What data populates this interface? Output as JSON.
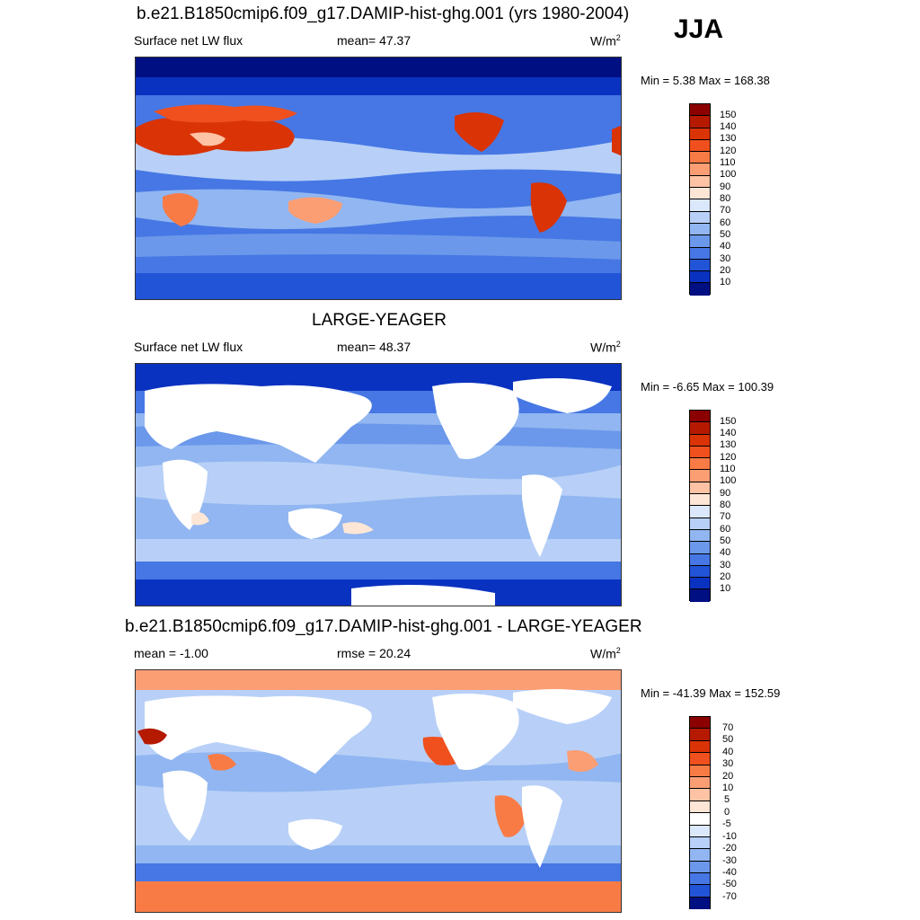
{
  "season": "JJA",
  "panels": [
    {
      "title": "b.e21.B1850cmip6.f09_g17.DAMIP-hist-ghg.001 (yrs 1980-2004)",
      "left_label": "Surface net LW flux",
      "stat_label": "mean=  47.37",
      "units": "W/m",
      "units_sup": "2",
      "minmax": "Min =   5.38 Max = 168.38",
      "colorbar": {
        "labels": [
          "150",
          "140",
          "130",
          "120",
          "110",
          "100",
          "90",
          "80",
          "70",
          "60",
          "50",
          "40",
          "30",
          "20",
          "10"
        ],
        "colors": [
          "#8b0000",
          "#b51a00",
          "#d93306",
          "#f0501e",
          "#f87b46",
          "#fb9e74",
          "#fdc3a4",
          "#fde6d6",
          "#dbe8fb",
          "#b8d0f7",
          "#91b6f1",
          "#6b98ea",
          "#4677e4",
          "#2254d8",
          "#0a32c0",
          "#000f82"
        ]
      }
    },
    {
      "title": "LARGE-YEAGER",
      "left_label": "Surface net LW flux",
      "stat_label": "mean=  48.37",
      "units": "W/m",
      "units_sup": "2",
      "minmax": "Min =  -6.65 Max = 100.39",
      "colorbar": {
        "labels": [
          "150",
          "140",
          "130",
          "120",
          "110",
          "100",
          "90",
          "80",
          "70",
          "60",
          "50",
          "40",
          "30",
          "20",
          "10"
        ],
        "colors": [
          "#8b0000",
          "#b51a00",
          "#d93306",
          "#f0501e",
          "#f87b46",
          "#fb9e74",
          "#fdc3a4",
          "#fde6d6",
          "#dbe8fb",
          "#b8d0f7",
          "#91b6f1",
          "#6b98ea",
          "#4677e4",
          "#2254d8",
          "#0a32c0",
          "#000f82"
        ]
      }
    },
    {
      "title": "b.e21.B1850cmip6.f09_g17.DAMIP-hist-ghg.001 - LARGE-YEAGER",
      "left_label": "mean =  -1.00",
      "stat_label": "rmse =  20.24",
      "units": "W/m",
      "units_sup": "2",
      "minmax": "Min = -41.39 Max = 152.59",
      "colorbar": {
        "labels": [
          "70",
          "50",
          "40",
          "30",
          "20",
          "10",
          "5",
          "0",
          "-5",
          "-10",
          "-20",
          "-30",
          "-40",
          "-50",
          "-70"
        ],
        "colors": [
          "#8b0000",
          "#b51a00",
          "#d93306",
          "#f0501e",
          "#f87b46",
          "#fb9e74",
          "#fdc3a4",
          "#fde6d6",
          "#ffffff",
          "#dbe8fb",
          "#b8d0f7",
          "#91b6f1",
          "#6b98ea",
          "#4677e4",
          "#2254d8",
          "#000f82"
        ]
      }
    }
  ]
}
